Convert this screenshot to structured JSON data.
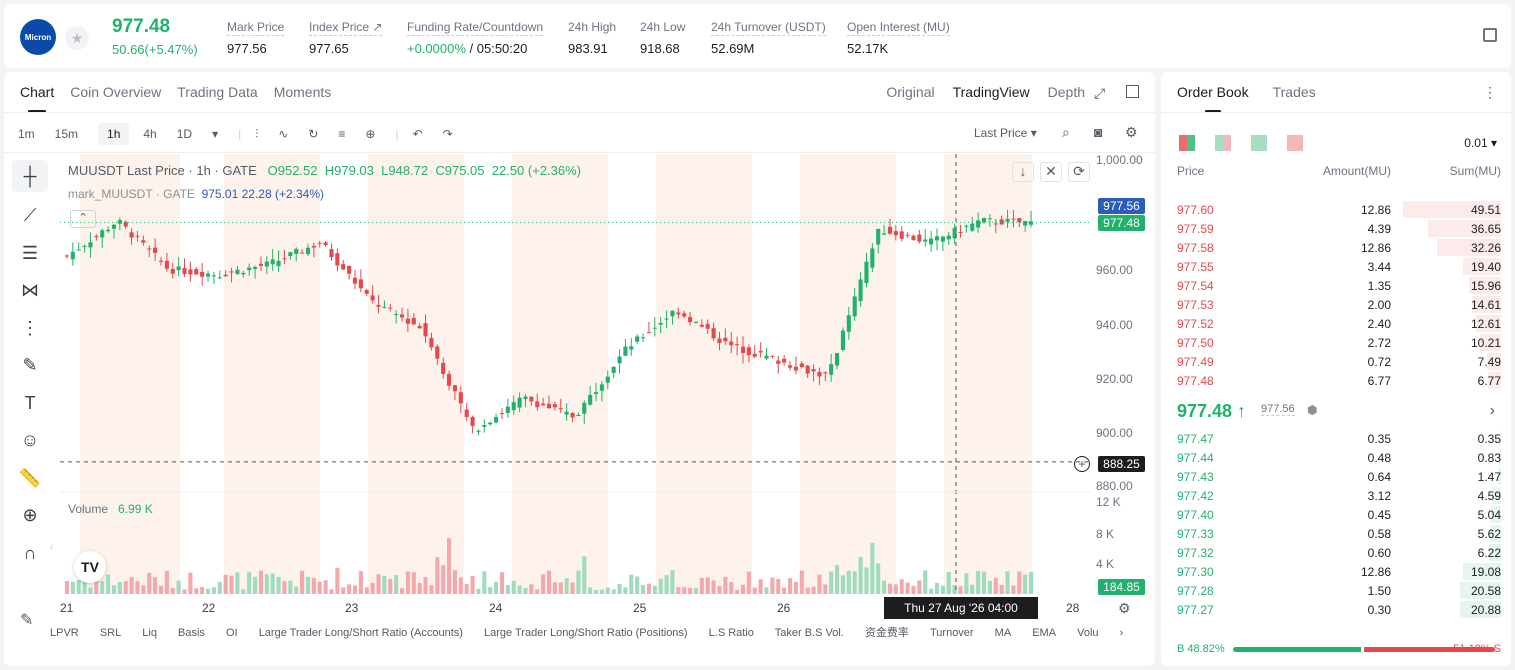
{
  "header": {
    "logo_text": "Micron",
    "last_price": "977.48",
    "change": "50.66(+5.47%)",
    "stats": [
      {
        "label": "Mark Price",
        "value": "977.56"
      },
      {
        "label": "Index Price ↗",
        "value": "977.65"
      },
      {
        "label": "Funding Rate/Countdown",
        "value_green": "+0.0000%",
        "value": " / 05:50:20"
      },
      {
        "label": "24h High",
        "value": "983.91"
      },
      {
        "label": "24h Low",
        "value": "918.68"
      },
      {
        "label": "24h Turnover (USDT)",
        "value": "52.69M"
      },
      {
        "label": "Open Interest (MU)",
        "value": "52.17K"
      }
    ]
  },
  "chart_tabs": [
    "Chart",
    "Coin Overview",
    "Trading Data",
    "Moments"
  ],
  "view_tabs": [
    "Original",
    "TradingView",
    "Depth"
  ],
  "intervals": [
    "1m",
    "15m",
    "1h",
    "4h",
    "1D"
  ],
  "last_price_select": "Last Price",
  "legend": {
    "symbol": "MUUSDT Last Price · 1h · GATE",
    "o": "O952.52",
    "h": "H979.03",
    "l": "L948.72",
    "c": "C975.05",
    "chg": "22.50 (+2.36%)",
    "mark": "mark_MUUSDT · GATE",
    "mark_vals": "975.01 22.28 (+2.34%)"
  },
  "volume": {
    "label": "Volume",
    "value": "6.99 K",
    "tag": "184.85"
  },
  "price_tags": {
    "mark": "977.56",
    "last": "977.48",
    "cross": "888.25"
  },
  "y_ticks": [
    "1,000.00",
    "960.00",
    "940.00",
    "920.00",
    "900.00",
    "880.00"
  ],
  "vol_ticks": [
    "12 K",
    "8 K",
    "4 K"
  ],
  "x_ticks": [
    "21",
    "22",
    "23",
    "24",
    "25",
    "26",
    "28"
  ],
  "crosshair_time": "Thu 27 Aug '26   04:00",
  "indicators": [
    "LPVR",
    "SRL",
    "Liq",
    "Basis",
    "OI",
    "Large Trader Long/Short Ratio (Accounts)",
    "Large Trader Long/Short Ratio (Positions)",
    "L.S Ratio",
    "Taker B.S Vol.",
    "资金费率",
    "Turnover",
    "MA",
    "EMA",
    "Volu"
  ],
  "chart_data": {
    "type": "candlestick",
    "title": "MUUSDT Last Price · 1h · GATE",
    "ylim": [
      880,
      1000
    ],
    "x": [
      "21",
      "22",
      "23",
      "24",
      "25",
      "26",
      "27",
      "28"
    ],
    "close_approx": [
      965,
      978,
      960,
      958,
      962,
      970,
      948,
      938,
      900,
      912,
      905,
      930,
      945,
      932,
      926,
      920,
      975,
      970,
      978,
      977.48
    ]
  },
  "orderbook": {
    "tabs": [
      "Order Book",
      "Trades"
    ],
    "step": "0.01",
    "headers": [
      "Price",
      "Amount(MU)",
      "Sum(MU)"
    ],
    "asks": [
      [
        "977.60",
        "12.86",
        "49.51"
      ],
      [
        "977.59",
        "4.39",
        "36.65"
      ],
      [
        "977.58",
        "12.86",
        "32.26"
      ],
      [
        "977.55",
        "3.44",
        "19.40"
      ],
      [
        "977.54",
        "1.35",
        "15.96"
      ],
      [
        "977.53",
        "2.00",
        "14.61"
      ],
      [
        "977.52",
        "2.40",
        "12.61"
      ],
      [
        "977.50",
        "2.72",
        "10.21"
      ],
      [
        "977.49",
        "0.72",
        "7.49"
      ],
      [
        "977.48",
        "6.77",
        "6.77"
      ]
    ],
    "mid": "977.48 ↑",
    "mid_mark": "977.56",
    "bids": [
      [
        "977.47",
        "0.35",
        "0.35"
      ],
      [
        "977.44",
        "0.48",
        "0.83"
      ],
      [
        "977.43",
        "0.64",
        "1.47"
      ],
      [
        "977.42",
        "3.12",
        "4.59"
      ],
      [
        "977.40",
        "0.45",
        "5.04"
      ],
      [
        "977.33",
        "0.58",
        "5.62"
      ],
      [
        "977.32",
        "0.60",
        "6.22"
      ],
      [
        "977.30",
        "12.86",
        "19.08"
      ],
      [
        "977.28",
        "1.50",
        "20.58"
      ],
      [
        "977.27",
        "0.30",
        "20.88"
      ]
    ],
    "buy": "B 48.82%",
    "sell": "51.18% S",
    "buy_ratio": 0.4882
  },
  "colors": {
    "up": "#20b26c",
    "down": "#e5484d"
  }
}
